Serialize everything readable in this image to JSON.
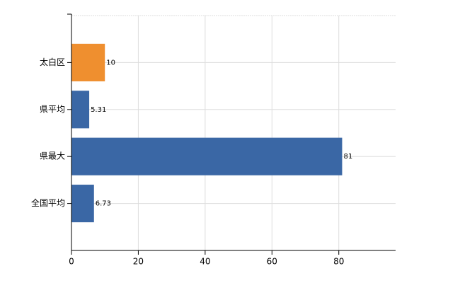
{
  "chart_data": {
    "type": "hbar",
    "categories": [
      "太白区",
      "県平均",
      "県最大",
      "全国平均"
    ],
    "values": [
      10,
      5.31,
      81,
      6.73
    ],
    "colors": [
      "#ef8f2f",
      "#3a67a5",
      "#3a67a5",
      "#3a67a5"
    ],
    "xlim": [
      0,
      97
    ],
    "xticks": [
      0,
      20,
      40,
      60,
      80
    ],
    "grid": true
  }
}
